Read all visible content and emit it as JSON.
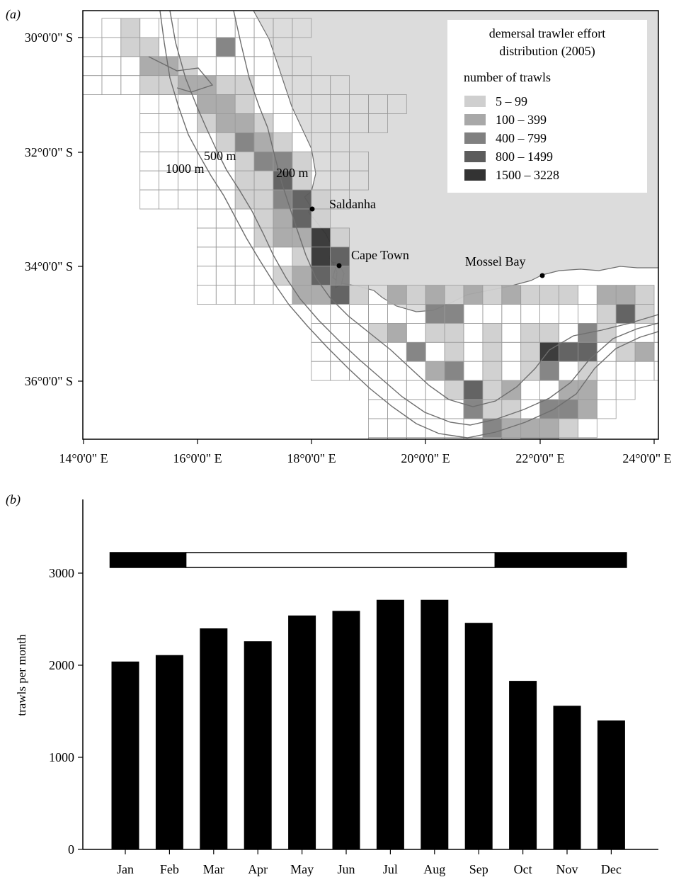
{
  "panel_a": {
    "label": "(a)",
    "legend": {
      "title_line1": "demersal trawler effort",
      "title_line2": "distribution (2005)",
      "subtitle": "number of trawls",
      "entries": [
        {
          "label": "5 – 99",
          "color": "#cfcfcf"
        },
        {
          "label": "100 – 399",
          "color": "#a8a8a8"
        },
        {
          "label": "400 – 799",
          "color": "#808080"
        },
        {
          "label": "800 – 1499",
          "color": "#5c5c5c"
        },
        {
          "label": "1500 – 3228",
          "color": "#333333"
        }
      ]
    },
    "lat_labels": [
      "30°0'0\" S",
      "32°0'0\" S",
      "34°0'0\" S",
      "36°0'0\" S"
    ],
    "lon_labels": [
      "14°0'0\" E",
      "16°0'0\" E",
      "18°0'0\" E",
      "20°0'0\" E",
      "22°0'0\" E",
      "24°0'0\" E"
    ],
    "depth_labels": [
      "500 m",
      "1000 m",
      "200 m"
    ],
    "places": [
      "Saldanha",
      "Cape Town",
      "Mossel Bay"
    ],
    "colors": {
      "land": "#dcdcdc",
      "sea": "#ffffff",
      "grid": "#9a9a9a",
      "contour": "#6e6e6e"
    }
  },
  "panel_b": {
    "label": "(b)"
  },
  "chart_data": {
    "type": "bar",
    "categories": [
      "Jan",
      "Feb",
      "Mar",
      "Apr",
      "May",
      "Jun",
      "Jul",
      "Aug",
      "Sep",
      "Oct",
      "Nov",
      "Dec"
    ],
    "values": [
      2040,
      2110,
      2400,
      2260,
      2540,
      2590,
      2710,
      2710,
      2460,
      1830,
      1560,
      1400
    ],
    "title": "",
    "xlabel": "",
    "ylabel": "trawls per month",
    "ylim": [
      0,
      3800
    ],
    "yticks": [
      0,
      1000,
      2000,
      3000
    ],
    "season_bar": [
      {
        "from": "Jan",
        "to": "Feb",
        "fill": "black"
      },
      {
        "from": "Mar",
        "to": "Sep",
        "fill": "white"
      },
      {
        "from": "Oct",
        "to": "Dec",
        "fill": "black"
      }
    ],
    "bar_color": "#000000"
  }
}
